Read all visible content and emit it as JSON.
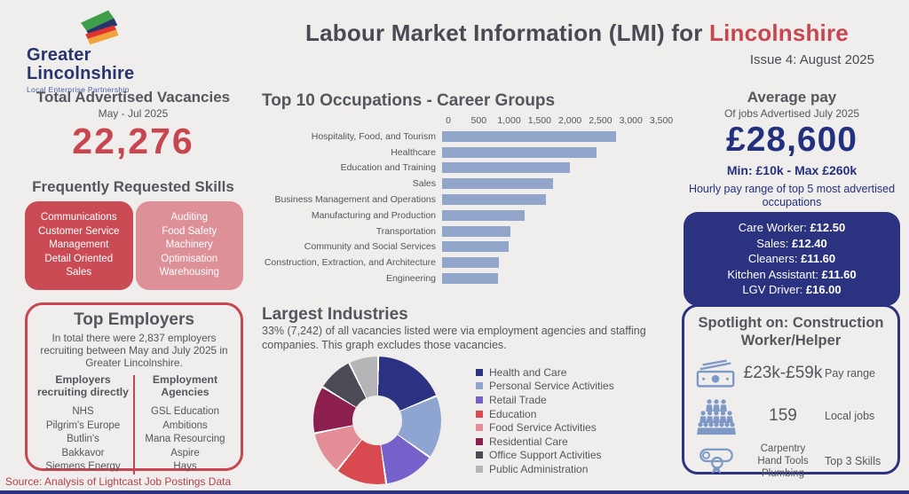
{
  "colors": {
    "accent_red": "#c9454f",
    "navy": "#2b3380",
    "bar_blue": "#92a5cb",
    "text_grey": "#55565e",
    "skill_box_dark": "#cb4b55",
    "skill_box_light": "#dd9098",
    "icon_blue": "#7e99c6",
    "background": "#efeeec"
  },
  "header": {
    "logo": {
      "line1": "Greater",
      "line2": "Lincolnshire",
      "tagline": "Local Enterprise Partnership"
    },
    "title_main": "Labour Market Information (LMI) for ",
    "title_highlight": "Lincolnshire",
    "issue": "Issue 4: August 2025"
  },
  "vacancies": {
    "title": "Total Advertised Vacancies",
    "period": "May - Jul 2025",
    "total": "22,276"
  },
  "skills": {
    "title": "Frequently Requested Skills",
    "group1": [
      "Communications",
      "Customer Service",
      "Management",
      "Detail Oriented",
      "Sales"
    ],
    "group2": [
      "Auditing",
      "Food Safety",
      "Machinery",
      "Optimisation",
      "Warehousing"
    ]
  },
  "employers": {
    "title": "Top Employers",
    "summary": "In total there were 2,837 employers recruiting between May and July 2025 in Greater Lincolnshire.",
    "col1": {
      "heading": "Employers recruiting directly",
      "items": [
        "NHS",
        "Pilgrim's Europe",
        "Butlin's",
        "Bakkavor",
        "Siemens Energy"
      ]
    },
    "col2": {
      "heading": "Employment Agencies",
      "items": [
        "GSL Education",
        "Ambitions",
        "Mana Resourcing",
        "Aspire",
        "Hays"
      ]
    }
  },
  "pay": {
    "title": "Average pay",
    "subtitle": "Of jobs Advertised July 2025",
    "amount": "£28,600",
    "range": "Min: £10k - Max £260k"
  },
  "hourly": {
    "intro": "Hourly pay range of top 5 most advertised occupations",
    "items": [
      {
        "label": "Care Worker",
        "value": "£12.50"
      },
      {
        "label": "Sales",
        "value": "£12.40"
      },
      {
        "label": "Cleaners",
        "value": "£11.60"
      },
      {
        "label": "Kitchen Assistant",
        "value": "£11.60"
      },
      {
        "label": "LGV Driver",
        "value": "£16.00"
      }
    ]
  },
  "spotlight": {
    "title": "Spotlight on: Construction Worker/Helper",
    "rows": [
      {
        "icon": "banknotes-icon",
        "value": "£23k-£59k",
        "label": "Pay range"
      },
      {
        "icon": "crowd-icon",
        "value": "159",
        "label": "Local jobs"
      },
      {
        "icon": "certificate-icon",
        "lines": [
          "Carpentry",
          "Hand Tools",
          "Plumbing"
        ],
        "label": "Top 3 Skills"
      }
    ]
  },
  "source": "Source: Analysis of Lightcast Job Postings Data",
  "chart_data": [
    {
      "type": "bar",
      "orientation": "horizontal",
      "title": "Top 10 Occupations - Career Groups",
      "categories": [
        "Hospitality, Food, and Tourism",
        "Healthcare",
        "Education and Training",
        "Sales",
        "Business Management and Operations",
        "Manufacturing and Production",
        "Transportation",
        "Community and Social Services",
        "Construction, Extraction, and Architecture",
        "Engineering"
      ],
      "values": [
        2860,
        2540,
        2100,
        1820,
        1700,
        1360,
        1130,
        1100,
        930,
        920
      ],
      "xlim": [
        0,
        3500
      ],
      "x_ticks": [
        "0",
        "500",
        "1,000",
        "1,500",
        "2,000",
        "2,500",
        "3,000",
        "3,500"
      ],
      "bar_color": "#92a5cb",
      "grid": false,
      "legend": false
    },
    {
      "type": "pie",
      "donut": true,
      "title": "Largest Industries",
      "subtitle": "33%  (7,242) of all vacancies listed were via employment agencies and staffing companies. This graph excludes those vacancies.",
      "legend_position": "right",
      "units": "percent-share-estimated",
      "slices": [
        {
          "label": "Health and Care",
          "value": 18.5,
          "color": "#2c3282"
        },
        {
          "label": "Personal Service Activities",
          "value": 16,
          "color": "#8fa5d1"
        },
        {
          "label": "Retail Trade",
          "value": 13,
          "color": "#7561c9"
        },
        {
          "label": "Education",
          "value": 13,
          "color": "#d94a50"
        },
        {
          "label": "Food Service Activities",
          "value": 11,
          "color": "#e38e96"
        },
        {
          "label": "Residential Care",
          "value": 12,
          "color": "#8c1f4e"
        },
        {
          "label": "Office Support Activities",
          "value": 9,
          "color": "#4c4a55"
        },
        {
          "label": "Public Administration",
          "value": 7.5,
          "color": "#b5b5b8"
        }
      ]
    }
  ]
}
